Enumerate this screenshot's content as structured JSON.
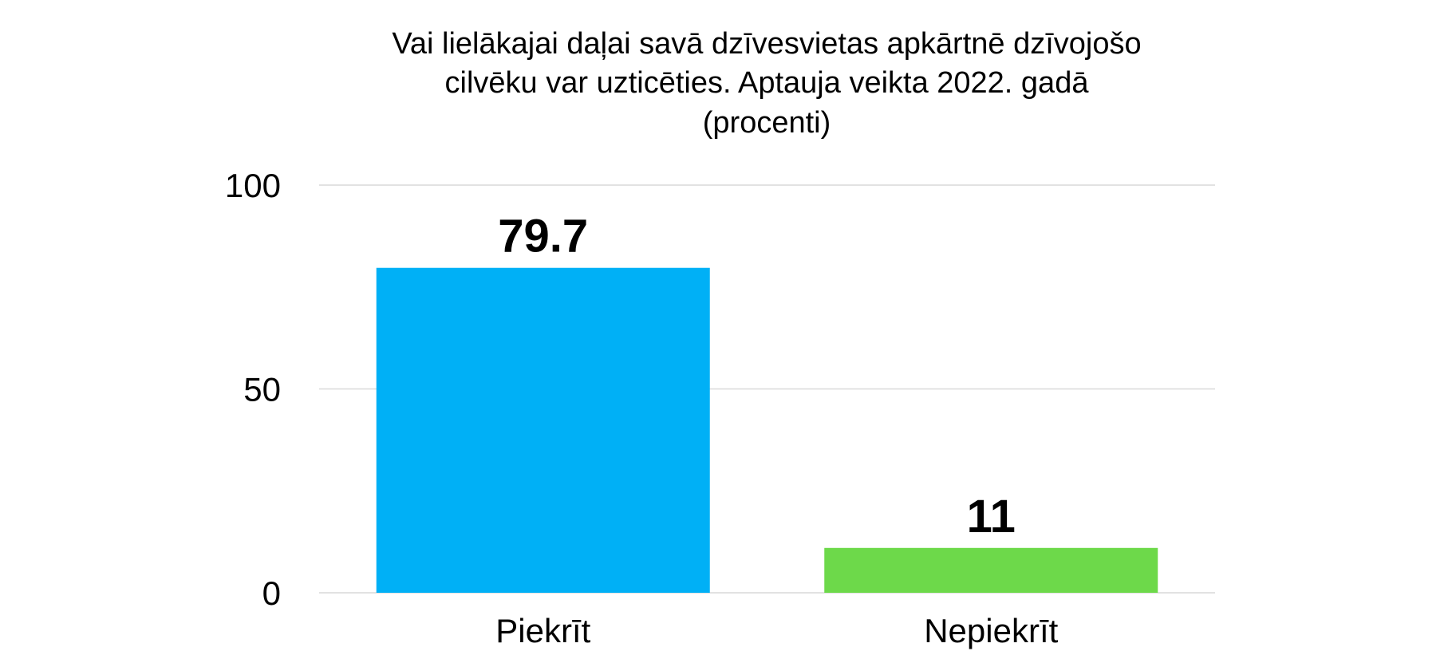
{
  "chart_data": {
    "type": "bar",
    "title_lines": [
      "Vai lielākajai daļai savā dzīvesvietas apkārtnē dzīvojošo",
      "cilvēku var uzticēties. Aptauja veikta 2022. gadā",
      "(procenti)"
    ],
    "categories": [
      "Piekrīt",
      "Nepiekrīt"
    ],
    "values": [
      79.7,
      11
    ],
    "data_labels": [
      "79.7",
      "11"
    ],
    "colors": [
      "#00b0f6",
      "#6dd94a"
    ],
    "ylim": [
      0,
      100
    ],
    "yticks": [
      0,
      50,
      100
    ],
    "ytick_labels": [
      "0",
      "50",
      "100"
    ],
    "xlabel": "",
    "ylabel": "",
    "grid": true,
    "legend": "none"
  }
}
